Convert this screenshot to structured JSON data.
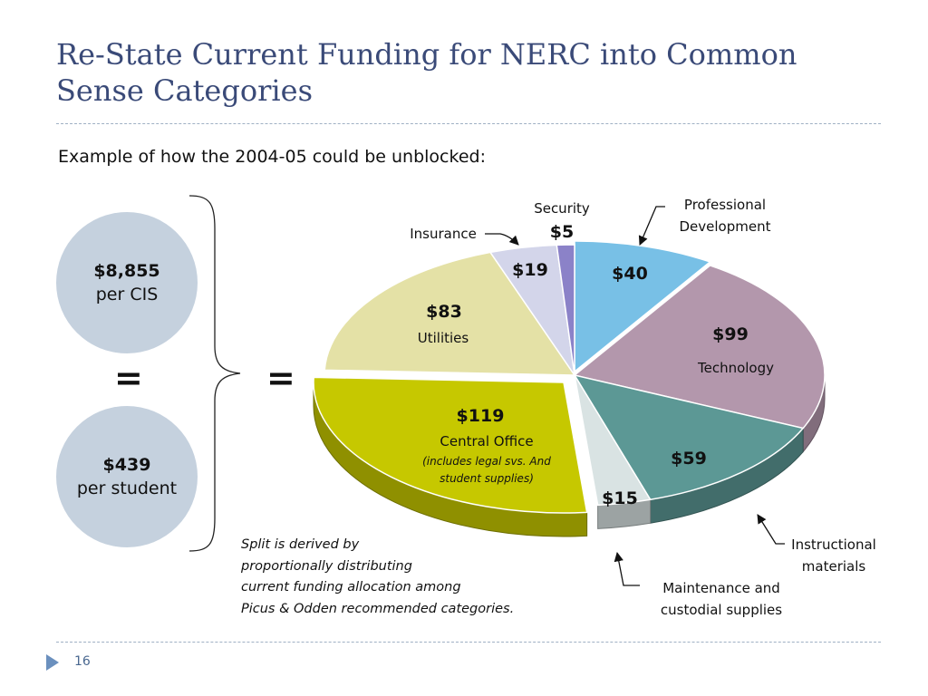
{
  "slide": {
    "title_line1": "Re-State Current Funding for NERC into Common",
    "title_line2": "Sense Categories",
    "subtitle": "Example of how the 2004-05 could be unblocked:",
    "page_number": "16",
    "circle_cis": {
      "value": "$8,855",
      "label": "per CIS"
    },
    "circle_student": {
      "value": "$439",
      "label": "per student"
    },
    "equals": "=",
    "note_lines": [
      "Split is derived by",
      "proportionally distributing",
      "current funding allocation among",
      "Picus & Odden recommended categories."
    ]
  },
  "chart_data": {
    "type": "pie",
    "title": "",
    "slices": [
      {
        "value": 40,
        "value_label": "$40",
        "label": "Professional Development",
        "color": "#78c0e6"
      },
      {
        "value": 99,
        "value_label": "$99",
        "label": "Technology",
        "color": "#b397ac"
      },
      {
        "value": 59,
        "value_label": "$59",
        "label": "Instructional materials",
        "color": "#5c9895"
      },
      {
        "value": 15,
        "value_label": "$15",
        "label": "Maintenance and custodial supplies",
        "color": "#d9e3e3"
      },
      {
        "value": 119,
        "value_label": "$119",
        "label": "Central Office",
        "note": "(includes legal svs. And student supplies)",
        "color": "#c6c800"
      },
      {
        "value": 83,
        "value_label": "$83",
        "label": "Utilities",
        "color": "#e4e1a6"
      },
      {
        "value": 19,
        "value_label": "$19",
        "label": "Insurance",
        "color": "#d3d5ea"
      },
      {
        "value": 5,
        "value_label": "$5",
        "label": "Security",
        "color": "#8b82c8"
      }
    ],
    "total": 439,
    "central_office_note_lines": [
      "(includes legal svs. And",
      "student supplies)"
    ],
    "callout_labels": {
      "professional_development": [
        "Professional",
        "Development"
      ],
      "instructional": [
        "Instructional",
        "materials"
      ],
      "maintenance": [
        "Maintenance and",
        "custodial supplies"
      ],
      "insurance": "Insurance",
      "security": "Security"
    },
    "legend": "none"
  }
}
